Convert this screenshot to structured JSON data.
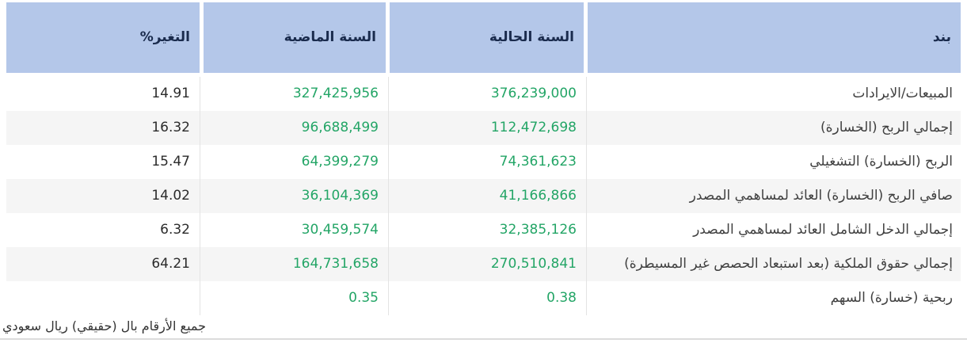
{
  "table": {
    "columns": {
      "item": "بند",
      "current_year": "السنة الحالية",
      "previous_year": "السنة الماضية",
      "change_pct": "التغير%"
    },
    "rows": [
      {
        "item": "المبيعات/الايرادات",
        "current_year": "376,239,000",
        "previous_year": "327,425,956",
        "change_pct": "14.91"
      },
      {
        "item": "إجمالي الربح (الخسارة)",
        "current_year": "112,472,698",
        "previous_year": "96,688,499",
        "change_pct": "16.32"
      },
      {
        "item": "الربح (الخسارة) التشغيلي",
        "current_year": "74,361,623",
        "previous_year": "64,399,279",
        "change_pct": "15.47"
      },
      {
        "item": "صافي الربح (الخسارة) العائد لمساهمي المصدر",
        "current_year": "41,166,866",
        "previous_year": "36,104,369",
        "change_pct": "14.02"
      },
      {
        "item": "إجمالي الدخل الشامل العائد لمساهمي المصدر",
        "current_year": "32,385,126",
        "previous_year": "30,459,574",
        "change_pct": "6.32"
      },
      {
        "item": "إجمالي حقوق الملكية (بعد استبعاد الحصص غير المسيطرة)",
        "current_year": "270,510,841",
        "previous_year": "164,731,658",
        "change_pct": "64.21"
      },
      {
        "item": "ربحية (خسارة) السهم",
        "current_year": "0.38",
        "previous_year": "0.35",
        "change_pct": ""
      }
    ],
    "footnote": "جميع الأرقام بال (حقيقي) ريال سعودي"
  },
  "colors": {
    "header_bg": "#b4c7e9",
    "header_text": "#1a2b4d",
    "value_green": "#23a566",
    "change_text": "#2b2b2b",
    "row_stripe": "#f5f5f5",
    "divider": "#e3e3e3",
    "bottom_rule": "#dcdcdc"
  }
}
